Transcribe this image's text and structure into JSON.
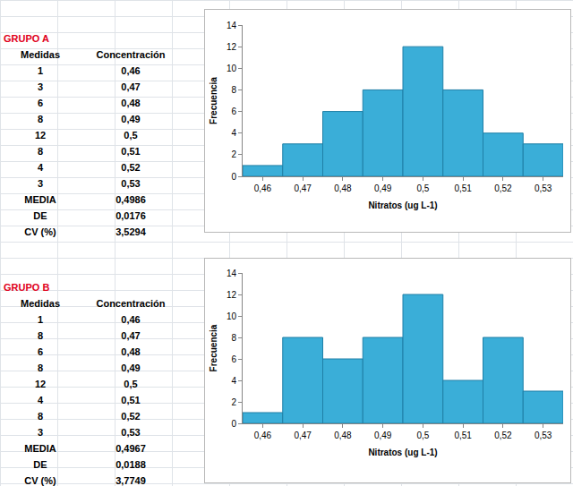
{
  "chart_data": [
    {
      "type": "bar",
      "categories": [
        "0,46",
        "0,47",
        "0,48",
        "0,49",
        "0,5",
        "0,51",
        "0,52",
        "0,53"
      ],
      "values": [
        1,
        3,
        6,
        8,
        12,
        8,
        4,
        3
      ],
      "color": "#3aaed8",
      "xlabel": "Nitratos (ug L-1)",
      "ylabel": "Frecuencia",
      "ylim": [
        0,
        14
      ],
      "yticks": [
        0,
        2,
        4,
        6,
        8,
        10,
        12,
        14
      ],
      "grid": false
    },
    {
      "type": "bar",
      "categories": [
        "0,46",
        "0,47",
        "0,48",
        "0,49",
        "0,5",
        "0,51",
        "0,52",
        "0,53"
      ],
      "values": [
        1,
        8,
        6,
        8,
        12,
        4,
        8,
        3
      ],
      "color": "#3aaed8",
      "xlabel": "Nitratos (ug L-1)",
      "ylabel": "Frecuencia",
      "ylim": [
        0,
        14
      ],
      "yticks": [
        0,
        2,
        4,
        6,
        8,
        10,
        12,
        14
      ],
      "grid": false
    }
  ],
  "tables": [
    {
      "title": "GRUPO A",
      "header": [
        "Medidas",
        "Concentración"
      ],
      "rows": [
        [
          1,
          "0,46"
        ],
        [
          3,
          "0,47"
        ],
        [
          6,
          "0,48"
        ],
        [
          8,
          "0,49"
        ],
        [
          12,
          "0,5"
        ],
        [
          8,
          "0,51"
        ],
        [
          4,
          "0,52"
        ],
        [
          3,
          "0,53"
        ]
      ],
      "summary": [
        [
          "MEDIA",
          "0,4986"
        ],
        [
          "DE",
          "0,0176"
        ],
        [
          "CV (%)",
          "3,5294"
        ]
      ]
    },
    {
      "title": "GRUPO B",
      "header": [
        "Medidas",
        "Concentración"
      ],
      "rows": [
        [
          1,
          "0,46"
        ],
        [
          8,
          "0,47"
        ],
        [
          6,
          "0,48"
        ],
        [
          8,
          "0,49"
        ],
        [
          12,
          "0,5"
        ],
        [
          4,
          "0,51"
        ],
        [
          8,
          "0,52"
        ],
        [
          3,
          "0,53"
        ]
      ],
      "summary": [
        [
          "MEDIA",
          "0,4967"
        ],
        [
          "DE",
          "0,0188"
        ],
        [
          "CV (%)",
          "3,7749"
        ]
      ]
    }
  ]
}
